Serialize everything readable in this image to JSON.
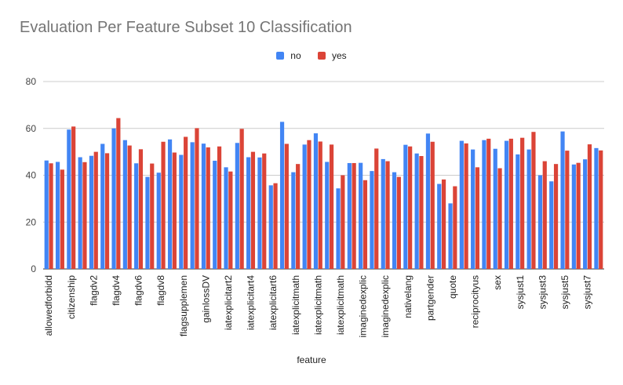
{
  "chart_data": {
    "type": "bar",
    "title": "Evaluation Per Feature Subset 10 Classification",
    "xlabel": "feature",
    "ylabel": "",
    "ylim": [
      0,
      80
    ],
    "yticks": [
      0,
      20,
      40,
      60,
      80
    ],
    "grid": true,
    "legend_position": "top",
    "categories": [
      "allowedforbidd",
      "",
      "citizenship",
      "",
      "flagdv2",
      "",
      "flagdv4",
      "",
      "flagdv6",
      "",
      "flagdv8",
      "",
      "flagsupplemen",
      "",
      "gainlossDV",
      "",
      "iatexplicitart2",
      "",
      "iatexplicitart4",
      "",
      "iatexplicitart6",
      "",
      "iatexplicitmath",
      "",
      "iatexplicitmath",
      "",
      "iatexplicitmath",
      "",
      "imaginedexplic",
      "",
      "imaginedexplic",
      "",
      "nativelang",
      "",
      "partgender",
      "",
      "quote",
      "",
      "reciprocityus",
      "",
      "sex",
      "",
      "sysjust1",
      "",
      "sysjust3",
      "",
      "sysjust5",
      "",
      "sysjust7",
      ""
    ],
    "series": [
      {
        "name": "no",
        "color": "#4285f4",
        "values": [
          46.3,
          45.7,
          59.5,
          47.7,
          48.3,
          53.4,
          60.0,
          55.0,
          45.1,
          39.3,
          41.1,
          55.3,
          48.7,
          54.1,
          53.5,
          46.2,
          43.4,
          53.8,
          47.7,
          47.6,
          35.7,
          62.8,
          41.3,
          53.1,
          57.9,
          45.7,
          34.4,
          45.2,
          45.3,
          41.8,
          46.9,
          41.3,
          53.0,
          49.3,
          57.8,
          36.3,
          28.0,
          54.7,
          51.0,
          55.0,
          51.3,
          54.7,
          48.9,
          51.0,
          40.0,
          37.4,
          58.7,
          44.6,
          46.8,
          51.6
        ]
      },
      {
        "name": "yes",
        "color": "#db4437",
        "values": [
          45.1,
          42.4,
          60.8,
          45.6,
          50.0,
          49.4,
          64.4,
          52.7,
          51.1,
          45.0,
          54.3,
          49.7,
          56.4,
          60.1,
          51.9,
          52.3,
          41.6,
          59.8,
          50.0,
          49.3,
          36.6,
          53.4,
          44.8,
          55.0,
          54.4,
          53.1,
          40.0,
          45.2,
          37.9,
          51.4,
          46.0,
          39.3,
          52.3,
          48.2,
          54.3,
          38.2,
          35.3,
          53.6,
          43.4,
          55.6,
          43.0,
          55.6,
          56.0,
          58.5,
          46.0,
          44.8,
          50.5,
          45.3,
          53.2,
          50.6
        ]
      }
    ]
  }
}
